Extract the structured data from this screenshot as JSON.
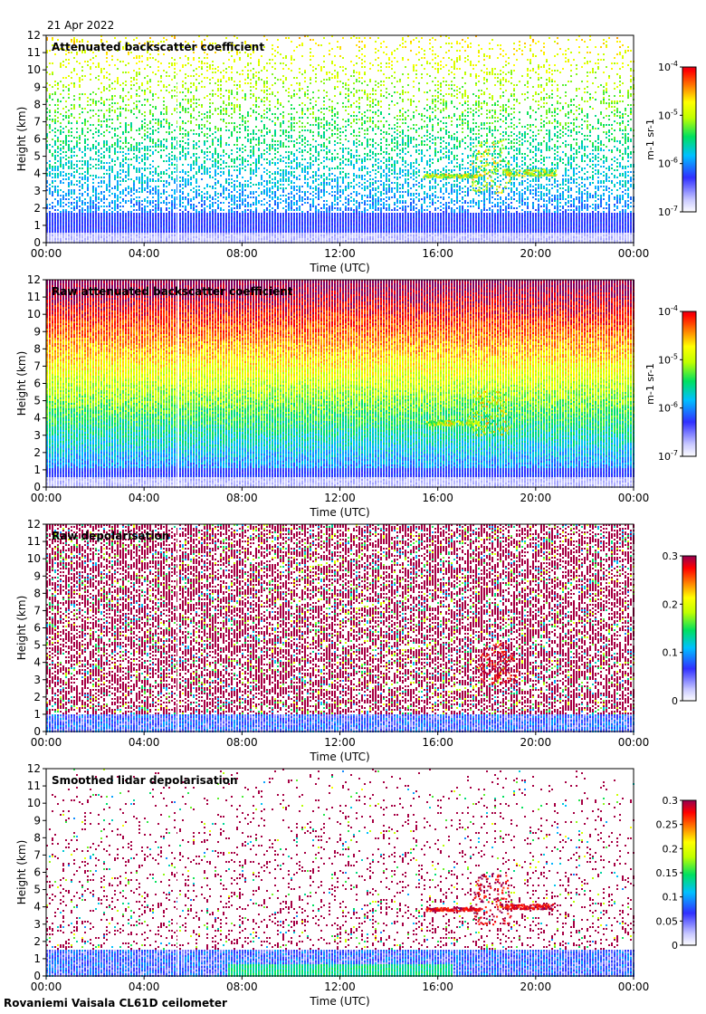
{
  "date": "21 Apr 2022",
  "footer": "Rovaniemi Vaisala CL61D ceilometer",
  "chart_data": [
    {
      "type": "heatmap",
      "title": "Attenuated backscatter coefficient",
      "xlabel": "Time (UTC)",
      "ylabel": "Height (km)",
      "x_ticks": [
        "00:00",
        "04:00",
        "08:00",
        "12:00",
        "16:00",
        "20:00",
        "00:00"
      ],
      "y_ticks": [
        "0",
        "1",
        "2",
        "3",
        "4",
        "5",
        "6",
        "7",
        "8",
        "9",
        "10",
        "11",
        "12"
      ],
      "ylim": [
        0,
        12
      ],
      "colorbar": {
        "scale": "log",
        "range": [
          1e-07,
          0.0001
        ],
        "unit": "m-1 sr-1",
        "ticks": [
          {
            "base": "10",
            "exp": "-7",
            "v": 0
          },
          {
            "base": "10",
            "exp": "-6",
            "v": 0.3333
          },
          {
            "base": "10",
            "exp": "-5",
            "v": 0.6667
          },
          {
            "base": "10",
            "exp": "-4",
            "v": 1
          }
        ]
      },
      "features": {
        "noise_top_level": 0.22,
        "noise_density_high": 0.12,
        "noise_density_low": 0.55,
        "boundary_layer_top_km": 1.8,
        "cloud": [
          {
            "time_h": 18.1,
            "base_km": 2.9,
            "top_km": 6.0
          },
          {
            "time_h": 16.5,
            "base_km": 3.8,
            "top_km": 4.0
          },
          {
            "time_h": 19.7,
            "base_km": 3.9,
            "top_km": 4.3
          }
        ],
        "data_gap_time_h": 5.4
      }
    },
    {
      "type": "heatmap",
      "title": "Raw attenuated backscatter coefficient",
      "xlabel": "Time (UTC)",
      "ylabel": "Height (km)",
      "x_ticks": [
        "00:00",
        "04:00",
        "08:00",
        "12:00",
        "16:00",
        "20:00",
        "00:00"
      ],
      "y_ticks": [
        "0",
        "1",
        "2",
        "3",
        "4",
        "5",
        "6",
        "7",
        "8",
        "9",
        "10",
        "11",
        "12"
      ],
      "ylim": [
        0,
        12
      ],
      "colorbar": {
        "scale": "log",
        "range": [
          1e-07,
          0.0001
        ],
        "unit": "m-1 sr-1",
        "ticks": [
          {
            "base": "10",
            "exp": "-7",
            "v": 0
          },
          {
            "base": "10",
            "exp": "-6",
            "v": 0.3333
          },
          {
            "base": "10",
            "exp": "-5",
            "v": 0.6667
          },
          {
            "base": "10",
            "exp": "-4",
            "v": 1
          }
        ]
      },
      "features": {
        "noise_top_level": 0.36,
        "noise_density_high": 1.0,
        "noise_density_low": 1.0,
        "boundary_layer_top_km": 1.2,
        "cloud": [
          {
            "time_h": 18.1,
            "base_km": 3.0,
            "top_km": 5.6
          },
          {
            "time_h": 16.6,
            "base_km": 3.6,
            "top_km": 3.9
          }
        ],
        "data_gap_time_h": 5.4
      }
    },
    {
      "type": "heatmap",
      "title": "Raw depolarisation",
      "xlabel": "Time (UTC)",
      "ylabel": "Height (km)",
      "x_ticks": [
        "00:00",
        "04:00",
        "08:00",
        "12:00",
        "16:00",
        "20:00",
        "00:00"
      ],
      "y_ticks": [
        "0",
        "1",
        "2",
        "3",
        "4",
        "5",
        "6",
        "7",
        "8",
        "9",
        "10",
        "11",
        "12"
      ],
      "ylim": [
        0,
        12
      ],
      "colorbar": {
        "scale": "linear",
        "range": [
          0,
          0.3
        ],
        "unit": "",
        "ticks": [
          {
            "base": "0",
            "v": 0
          },
          {
            "base": "0.1",
            "v": 0.3333
          },
          {
            "base": "0.2",
            "v": 0.6667
          },
          {
            "base": "0.3",
            "v": 1
          }
        ]
      },
      "features": {
        "noise_top_level": 1.0,
        "noise_density_high": 0.75,
        "noise_density_low": 0.75,
        "boundary_layer_top_km": 1.0,
        "cloud": [
          {
            "time_h": 18.4,
            "base_km": 2.8,
            "top_km": 5.2
          }
        ],
        "data_gap_time_h": 5.4
      }
    },
    {
      "type": "heatmap",
      "title": "Smoothed lidar depolarisation",
      "xlabel": "Time (UTC)",
      "ylabel": "Height (km)",
      "x_ticks": [
        "00:00",
        "04:00",
        "08:00",
        "12:00",
        "16:00",
        "20:00",
        "00:00"
      ],
      "y_ticks": [
        "0",
        "1",
        "2",
        "3",
        "4",
        "5",
        "6",
        "7",
        "8",
        "9",
        "10",
        "11",
        "12"
      ],
      "ylim": [
        0,
        12
      ],
      "colorbar": {
        "scale": "linear",
        "range": [
          0,
          0.3
        ],
        "unit": "",
        "ticks": [
          {
            "base": "0",
            "v": 0
          },
          {
            "base": "0.05",
            "v": 0.1667
          },
          {
            "base": "0.1",
            "v": 0.3333
          },
          {
            "base": "0.15",
            "v": 0.5
          },
          {
            "base": "0.2",
            "v": 0.6667
          },
          {
            "base": "0.25",
            "v": 0.8333
          },
          {
            "base": "0.3",
            "v": 1
          }
        ]
      },
      "features": {
        "noise_top_level": 1.0,
        "noise_density_high": 0.04,
        "noise_density_low": 0.25,
        "boundary_layer_top_km": 1.6,
        "cloud": [
          {
            "time_h": 18.2,
            "base_km": 3.0,
            "top_km": 6.0
          },
          {
            "time_h": 16.6,
            "base_km": 3.8,
            "top_km": 4.0
          },
          {
            "time_h": 19.6,
            "base_km": 3.9,
            "top_km": 4.2
          }
        ],
        "data_gap_time_h": 5.4
      }
    }
  ]
}
